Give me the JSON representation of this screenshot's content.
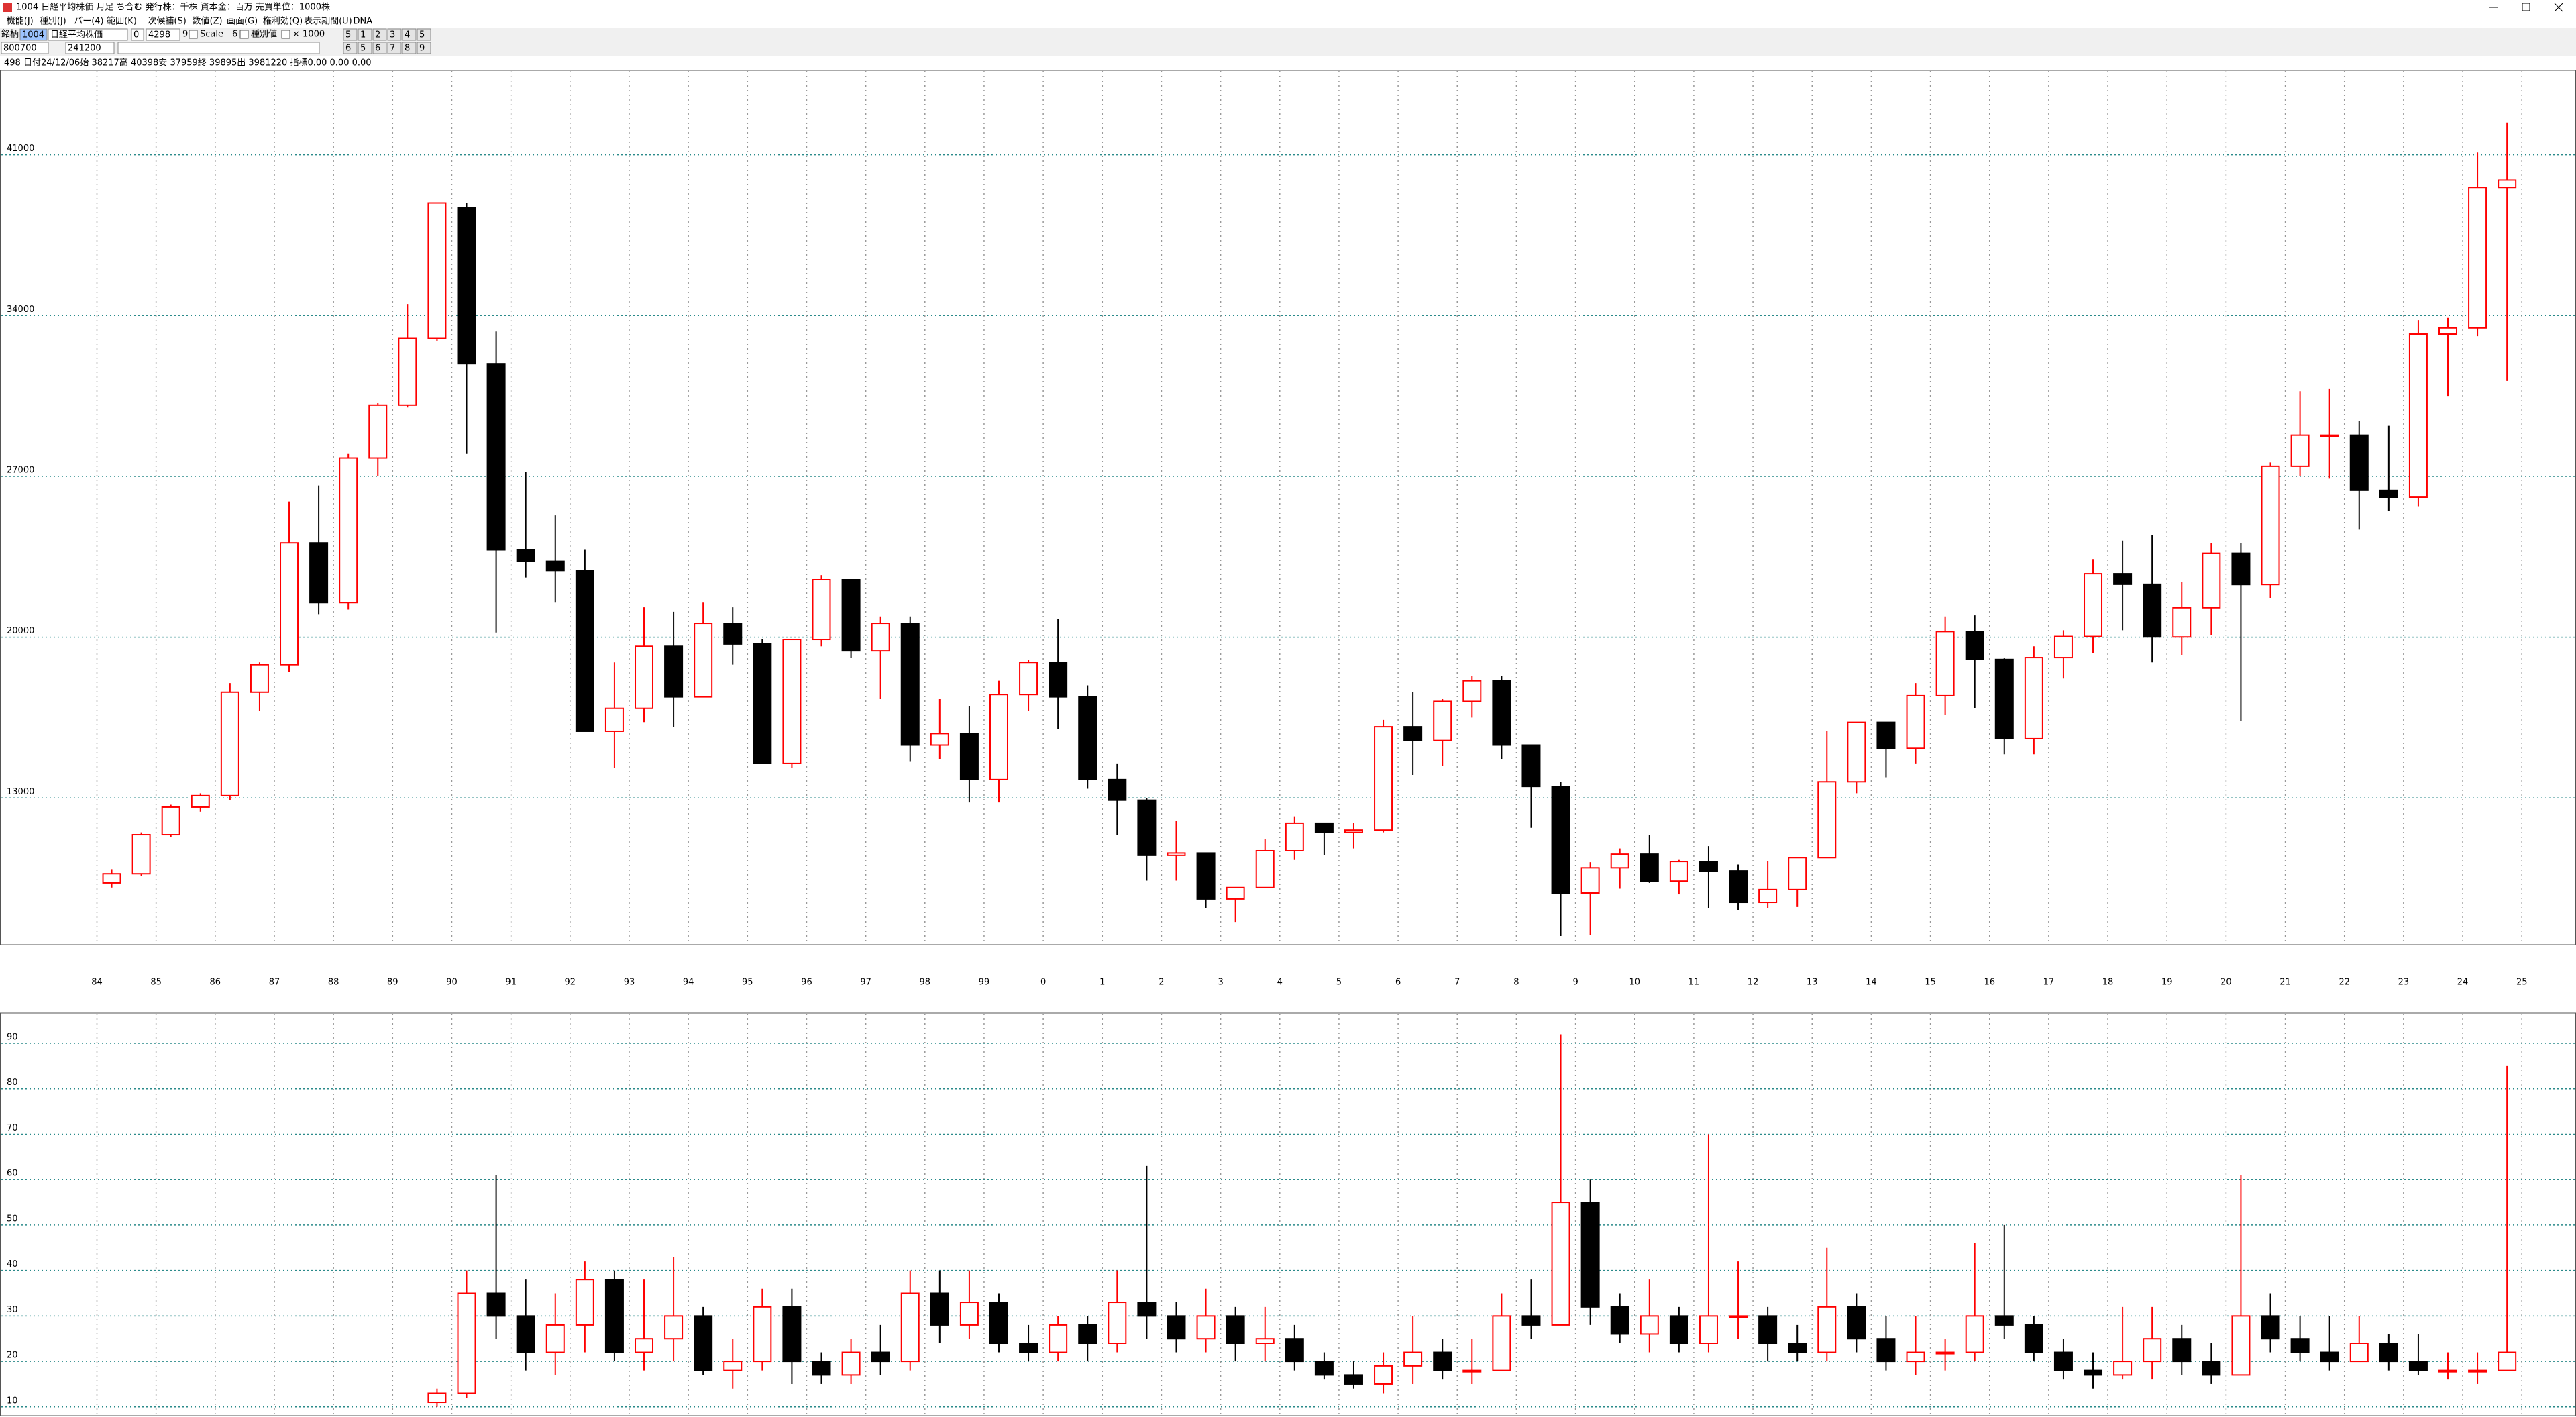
{
  "window": {
    "title": "1004 日経平均株価 月足 ち合む 発行株：千株 資本金：百万 売買単位：1000株"
  },
  "menu": [
    "機能(J)",
    "種別(J)",
    "バー(4)",
    "範囲(K)",
    "次候補(S)",
    "数値(Z)",
    "画面(G)",
    "権利効(Q)",
    "表示期間(U)",
    "DNA"
  ],
  "toolbar": {
    "code_label": "銘柄",
    "code": "1004",
    "name": "日経平均株価",
    "field1": "0",
    "field2": "4298",
    "field3": "9",
    "scale": "Scale",
    "field4": "6",
    "kind": "種別値",
    "multiplier": "× 1000",
    "buttons_row1": [
      "5",
      "1",
      "2",
      "3",
      "4",
      "5"
    ],
    "start": "800700",
    "end": "241200",
    "buttons_row2": [
      "6",
      "5",
      "6",
      "7",
      "8",
      "9"
    ]
  },
  "info_line": "498 日付24/12/06始 38217高 40398安 37959終 39895出 3981220 指標0.00  0.00  0.00",
  "chart_data": [
    {
      "type": "candlestick",
      "up_color": "#ff0000",
      "down_color": "#000000",
      "grid": true,
      "ylim": [
        6640,
        44640
      ],
      "yticks": [
        13000,
        20000,
        27000,
        34000,
        41000
      ],
      "xtick_labels": [
        "84",
        "85",
        "86",
        "87",
        "88",
        "89",
        "90",
        "91",
        "92",
        "93",
        "94",
        "95",
        "96",
        "97",
        "98",
        "99",
        "0",
        "1",
        "2",
        "3",
        "4",
        "5",
        "6",
        "7",
        "8",
        "9",
        "10",
        "11",
        "12",
        "13",
        "14",
        "15",
        "16",
        "17",
        "18",
        "19",
        "20",
        "21",
        "22",
        "23",
        "24",
        "25"
      ],
      "open": [
        9300,
        9700,
        11400,
        12600,
        13100,
        17600,
        18800,
        24100,
        21500,
        27800,
        30100,
        33000,
        38700,
        31900,
        23800,
        23300,
        22900,
        15900,
        16900,
        19600,
        17400,
        20600,
        19700,
        14500,
        19900,
        22500,
        19400,
        20600,
        15300,
        15800,
        13800,
        17500,
        18900,
        17400,
        13800,
        12900,
        10500,
        10600,
        8600,
        9100,
        10700,
        11900,
        11500,
        11600,
        16100,
        15500,
        17200,
        18100,
        15300,
        13500,
        8860,
        9960,
        10550,
        9380,
        10230,
        9820,
        8450,
        9010,
        10400,
        13700,
        16290,
        15160,
        17450,
        20240,
        19030,
        15580,
        19110,
        20030,
        22760,
        22300,
        20010,
        21280,
        23650,
        22290,
        27440,
        28790,
        28790,
        26390,
        26090,
        33190,
        33460,
        39580
      ],
      "high": [
        9900,
        11500,
        12700,
        13200,
        18000,
        18900,
        25900,
        26600,
        28000,
        30200,
        34500,
        38900,
        38900,
        33300,
        27200,
        25300,
        23800,
        18900,
        21300,
        21100,
        21500,
        21300,
        19900,
        19900,
        22700,
        22500,
        20900,
        20900,
        17300,
        17000,
        18100,
        19000,
        20800,
        17900,
        14500,
        13000,
        12000,
        10600,
        9100,
        11200,
        12200,
        11900,
        11900,
        16400,
        17600,
        17300,
        18300,
        18300,
        15300,
        13700,
        10200,
        10800,
        11400,
        10300,
        10900,
        10100,
        10250,
        10400,
        15900,
        16300,
        16300,
        18000,
        20900,
        20950,
        19100,
        19600,
        20300,
        23400,
        24200,
        24450,
        22400,
        24100,
        24100,
        27600,
        30700,
        30800,
        29400,
        29200,
        33800,
        33900,
        41100,
        42400
      ],
      "low": [
        9100,
        9600,
        11300,
        12400,
        12900,
        16800,
        18500,
        21000,
        21200,
        27000,
        30000,
        32900,
        28000,
        20200,
        22600,
        21500,
        15900,
        14300,
        16300,
        16100,
        17400,
        18800,
        14500,
        14300,
        19600,
        19100,
        17300,
        14600,
        14700,
        12800,
        12800,
        16800,
        16000,
        13400,
        11400,
        9400,
        9400,
        8200,
        7600,
        9100,
        10300,
        10500,
        10800,
        11500,
        14000,
        14400,
        16500,
        14700,
        11700,
        6990,
        7050,
        9050,
        9300,
        8800,
        8200,
        8100,
        8200,
        8250,
        10400,
        13200,
        13900,
        14500,
        16600,
        16900,
        14900,
        14900,
        18200,
        19300,
        20300,
        18900,
        19200,
        20100,
        16350,
        21700,
        27000,
        26900,
        24680,
        25500,
        25700,
        30500,
        33100,
        31150
      ],
      "close": [
        9700,
        11400,
        12600,
        13100,
        17600,
        18800,
        24100,
        21500,
        27800,
        30100,
        33000,
        38900,
        31900,
        23800,
        23300,
        22900,
        15900,
        16900,
        19600,
        17400,
        20600,
        19700,
        14500,
        19900,
        22500,
        19400,
        20600,
        15300,
        15800,
        13800,
        17500,
        18900,
        17400,
        13800,
        12900,
        10500,
        10600,
        8600,
        9100,
        10700,
        11900,
        11500,
        11600,
        16100,
        15500,
        17200,
        18100,
        15300,
        13500,
        8860,
        9960,
        10550,
        9380,
        10230,
        9820,
        8450,
        9010,
        10400,
        13700,
        16290,
        15160,
        17450,
        20240,
        19030,
        15580,
        19110,
        20030,
        22760,
        22300,
        20010,
        21280,
        23650,
        22290,
        27440,
        28790,
        28790,
        26390,
        26090,
        33190,
        33460,
        39580,
        39895
      ]
    },
    {
      "type": "candlestick",
      "up_color": "#ff0000",
      "down_color": "#000000",
      "grid": true,
      "ylim": [
        8.2,
        96.5
      ],
      "yticks": [
        10,
        20,
        30,
        40,
        50,
        60,
        70,
        80,
        90
      ],
      "open": [
        null,
        null,
        null,
        null,
        null,
        null,
        null,
        null,
        null,
        null,
        null,
        11,
        13,
        35,
        30,
        22,
        28,
        38,
        22,
        25,
        30,
        18,
        20,
        32,
        20,
        17,
        22,
        20,
        35,
        28,
        33,
        24,
        22,
        28,
        24,
        33,
        30,
        25,
        30,
        24,
        25,
        20,
        17,
        15,
        19,
        22,
        18,
        18,
        30,
        28,
        55,
        32,
        26,
        30,
        24,
        30,
        30,
        24,
        22,
        32,
        25,
        20,
        22,
        22,
        30,
        28,
        22,
        18,
        17,
        20,
        25,
        20,
        17,
        30,
        25,
        22,
        20,
        24,
        20,
        18,
        18,
        18
      ],
      "high": [
        null,
        null,
        null,
        null,
        null,
        null,
        null,
        null,
        null,
        null,
        null,
        14,
        40,
        61,
        38,
        35,
        42,
        40,
        38,
        43,
        32,
        25,
        36,
        36,
        22,
        25,
        28,
        40,
        40,
        40,
        35,
        28,
        30,
        30,
        40,
        63,
        33,
        36,
        32,
        32,
        28,
        22,
        20,
        22,
        30,
        25,
        25,
        35,
        38,
        92,
        60,
        35,
        38,
        32,
        70,
        42,
        32,
        28,
        45,
        35,
        30,
        30,
        25,
        46,
        50,
        30,
        25,
        22,
        32,
        32,
        28,
        24,
        61,
        35,
        30,
        30,
        30,
        26,
        26,
        22,
        22,
        85
      ],
      "low": [
        null,
        null,
        null,
        null,
        null,
        null,
        null,
        null,
        null,
        null,
        null,
        10,
        12,
        25,
        18,
        17,
        22,
        20,
        18,
        20,
        17,
        14,
        18,
        15,
        15,
        15,
        17,
        18,
        24,
        25,
        22,
        20,
        20,
        20,
        22,
        25,
        22,
        22,
        20,
        20,
        18,
        16,
        14,
        13,
        15,
        16,
        15,
        18,
        25,
        28,
        28,
        24,
        22,
        22,
        22,
        25,
        20,
        20,
        20,
        22,
        18,
        17,
        18,
        20,
        25,
        20,
        16,
        14,
        16,
        16,
        17,
        15,
        17,
        22,
        20,
        18,
        20,
        18,
        17,
        16,
        15,
        18
      ],
      "close": [
        null,
        null,
        null,
        null,
        null,
        null,
        null,
        null,
        null,
        null,
        null,
        13,
        35,
        30,
        22,
        28,
        38,
        22,
        25,
        30,
        18,
        20,
        32,
        20,
        17,
        22,
        20,
        35,
        28,
        33,
        24,
        22,
        28,
        24,
        33,
        30,
        25,
        30,
        24,
        25,
        20,
        17,
        15,
        19,
        22,
        18,
        18,
        30,
        28,
        55,
        32,
        26,
        30,
        24,
        30,
        30,
        24,
        22,
        32,
        25,
        20,
        22,
        22,
        30,
        28,
        22,
        18,
        17,
        20,
        25,
        20,
        17,
        30,
        25,
        22,
        20,
        24,
        20,
        18,
        18,
        18,
        22
      ]
    }
  ]
}
